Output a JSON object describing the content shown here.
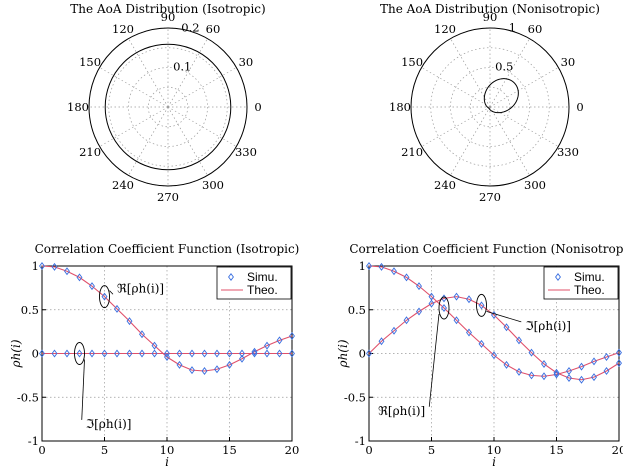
{
  "chart_data": [
    {
      "type": "polar",
      "title": "The AoA Distribution (Isotropic)",
      "angle_ticks": [
        "0",
        "30",
        "60",
        "90",
        "120",
        "150",
        "180",
        "210",
        "240",
        "270",
        "300",
        "330"
      ],
      "radial_max": 0.2,
      "radial_ticks": [
        {
          "value": 0.1,
          "label": "0.1"
        },
        {
          "value": 0.2,
          "label": "0.2"
        }
      ],
      "curve": {
        "kind": "isotropic",
        "radius": 0.159
      }
    },
    {
      "type": "polar",
      "title": "The AoA Distribution (Nonisotropic)",
      "angle_ticks": [
        "0",
        "30",
        "60",
        "90",
        "120",
        "150",
        "180",
        "210",
        "240",
        "270",
        "300",
        "330"
      ],
      "radial_max": 1,
      "radial_ticks": [
        {
          "value": 0.5,
          "label": "0.5"
        },
        {
          "value": 1,
          "label": "1"
        }
      ],
      "curve": {
        "kind": "von_mises",
        "mean_deg": 45,
        "kappa": 1.5
      }
    },
    {
      "type": "line",
      "title": "Correlation Coefficient Function (Isotropic)",
      "xlabel": "i",
      "ylabel": "ρh(i)",
      "xlim": [
        0,
        20
      ],
      "ylim": [
        -1,
        1
      ],
      "xticks": [
        0,
        5,
        10,
        15,
        20
      ],
      "yticks": [
        -1,
        -0.5,
        0,
        0.5,
        1
      ],
      "legend": {
        "position": "top-right",
        "entries": [
          "Simu.",
          "Theo."
        ]
      },
      "series": [
        {
          "name": "Real",
          "values": [
            1,
            0.99,
            0.94,
            0.87,
            0.77,
            0.65,
            0.51,
            0.37,
            0.22,
            0.09,
            -0.04,
            -0.13,
            -0.19,
            -0.2,
            -0.18,
            -0.13,
            -0.06,
            0.02,
            0.09,
            0.15,
            0.2
          ],
          "x": [
            0,
            1,
            2,
            3,
            4,
            5,
            6,
            7,
            8,
            9,
            10,
            11,
            12,
            13,
            14,
            15,
            16,
            17,
            18,
            19,
            20
          ]
        },
        {
          "name": "Imag",
          "values": [
            0,
            0,
            0,
            0,
            0,
            0,
            0,
            0,
            0,
            0,
            0,
            0,
            0,
            0,
            0,
            0,
            0,
            0,
            0,
            0,
            0
          ],
          "x": [
            0,
            1,
            2,
            3,
            4,
            5,
            6,
            7,
            8,
            9,
            10,
            11,
            12,
            13,
            14,
            15,
            16,
            17,
            18,
            19,
            20
          ]
        }
      ],
      "annotations": [
        {
          "text": "ℜ[ρh(i)]",
          "x": 6,
          "y": 0.7
        },
        {
          "text": "ℑ[ρh(i)]",
          "x": 3.5,
          "y": -0.85
        }
      ]
    },
    {
      "type": "line",
      "title": "Correlation Coefficient Function (Nonisotropic)",
      "xlabel": "i",
      "ylabel": "ρh(i)",
      "xlim": [
        0,
        20
      ],
      "ylim": [
        -1,
        1
      ],
      "xticks": [
        0,
        5,
        10,
        15,
        20
      ],
      "yticks": [
        -1,
        -0.5,
        0,
        0.5,
        1
      ],
      "legend": {
        "position": "top-right",
        "entries": [
          "Simu.",
          "Theo."
        ]
      },
      "series": [
        {
          "name": "Real",
          "values": [
            1,
            0.99,
            0.94,
            0.87,
            0.77,
            0.65,
            0.52,
            0.38,
            0.24,
            0.11,
            -0.02,
            -0.13,
            -0.21,
            -0.25,
            -0.26,
            -0.24,
            -0.2,
            -0.15,
            -0.09,
            -0.04,
            0.01
          ],
          "x": [
            0,
            1,
            2,
            3,
            4,
            5,
            6,
            7,
            8,
            9,
            10,
            11,
            12,
            13,
            14,
            15,
            16,
            17,
            18,
            19,
            20
          ]
        },
        {
          "name": "Imag",
          "values": [
            0,
            0.14,
            0.26,
            0.38,
            0.48,
            0.57,
            0.63,
            0.65,
            0.62,
            0.55,
            0.44,
            0.3,
            0.15,
            0.01,
            -0.12,
            -0.22,
            -0.28,
            -0.3,
            -0.27,
            -0.2,
            -0.11
          ],
          "x": [
            0,
            1,
            2,
            3,
            4,
            5,
            6,
            7,
            8,
            9,
            10,
            11,
            12,
            13,
            14,
            15,
            16,
            17,
            18,
            19,
            20
          ]
        }
      ],
      "annotations": [
        {
          "text": "ℜ[ρh(i)]",
          "x": 4.5,
          "y": -0.7
        },
        {
          "text": "ℑ[ρh(i)]",
          "x": 12.5,
          "y": 0.27
        }
      ]
    }
  ]
}
